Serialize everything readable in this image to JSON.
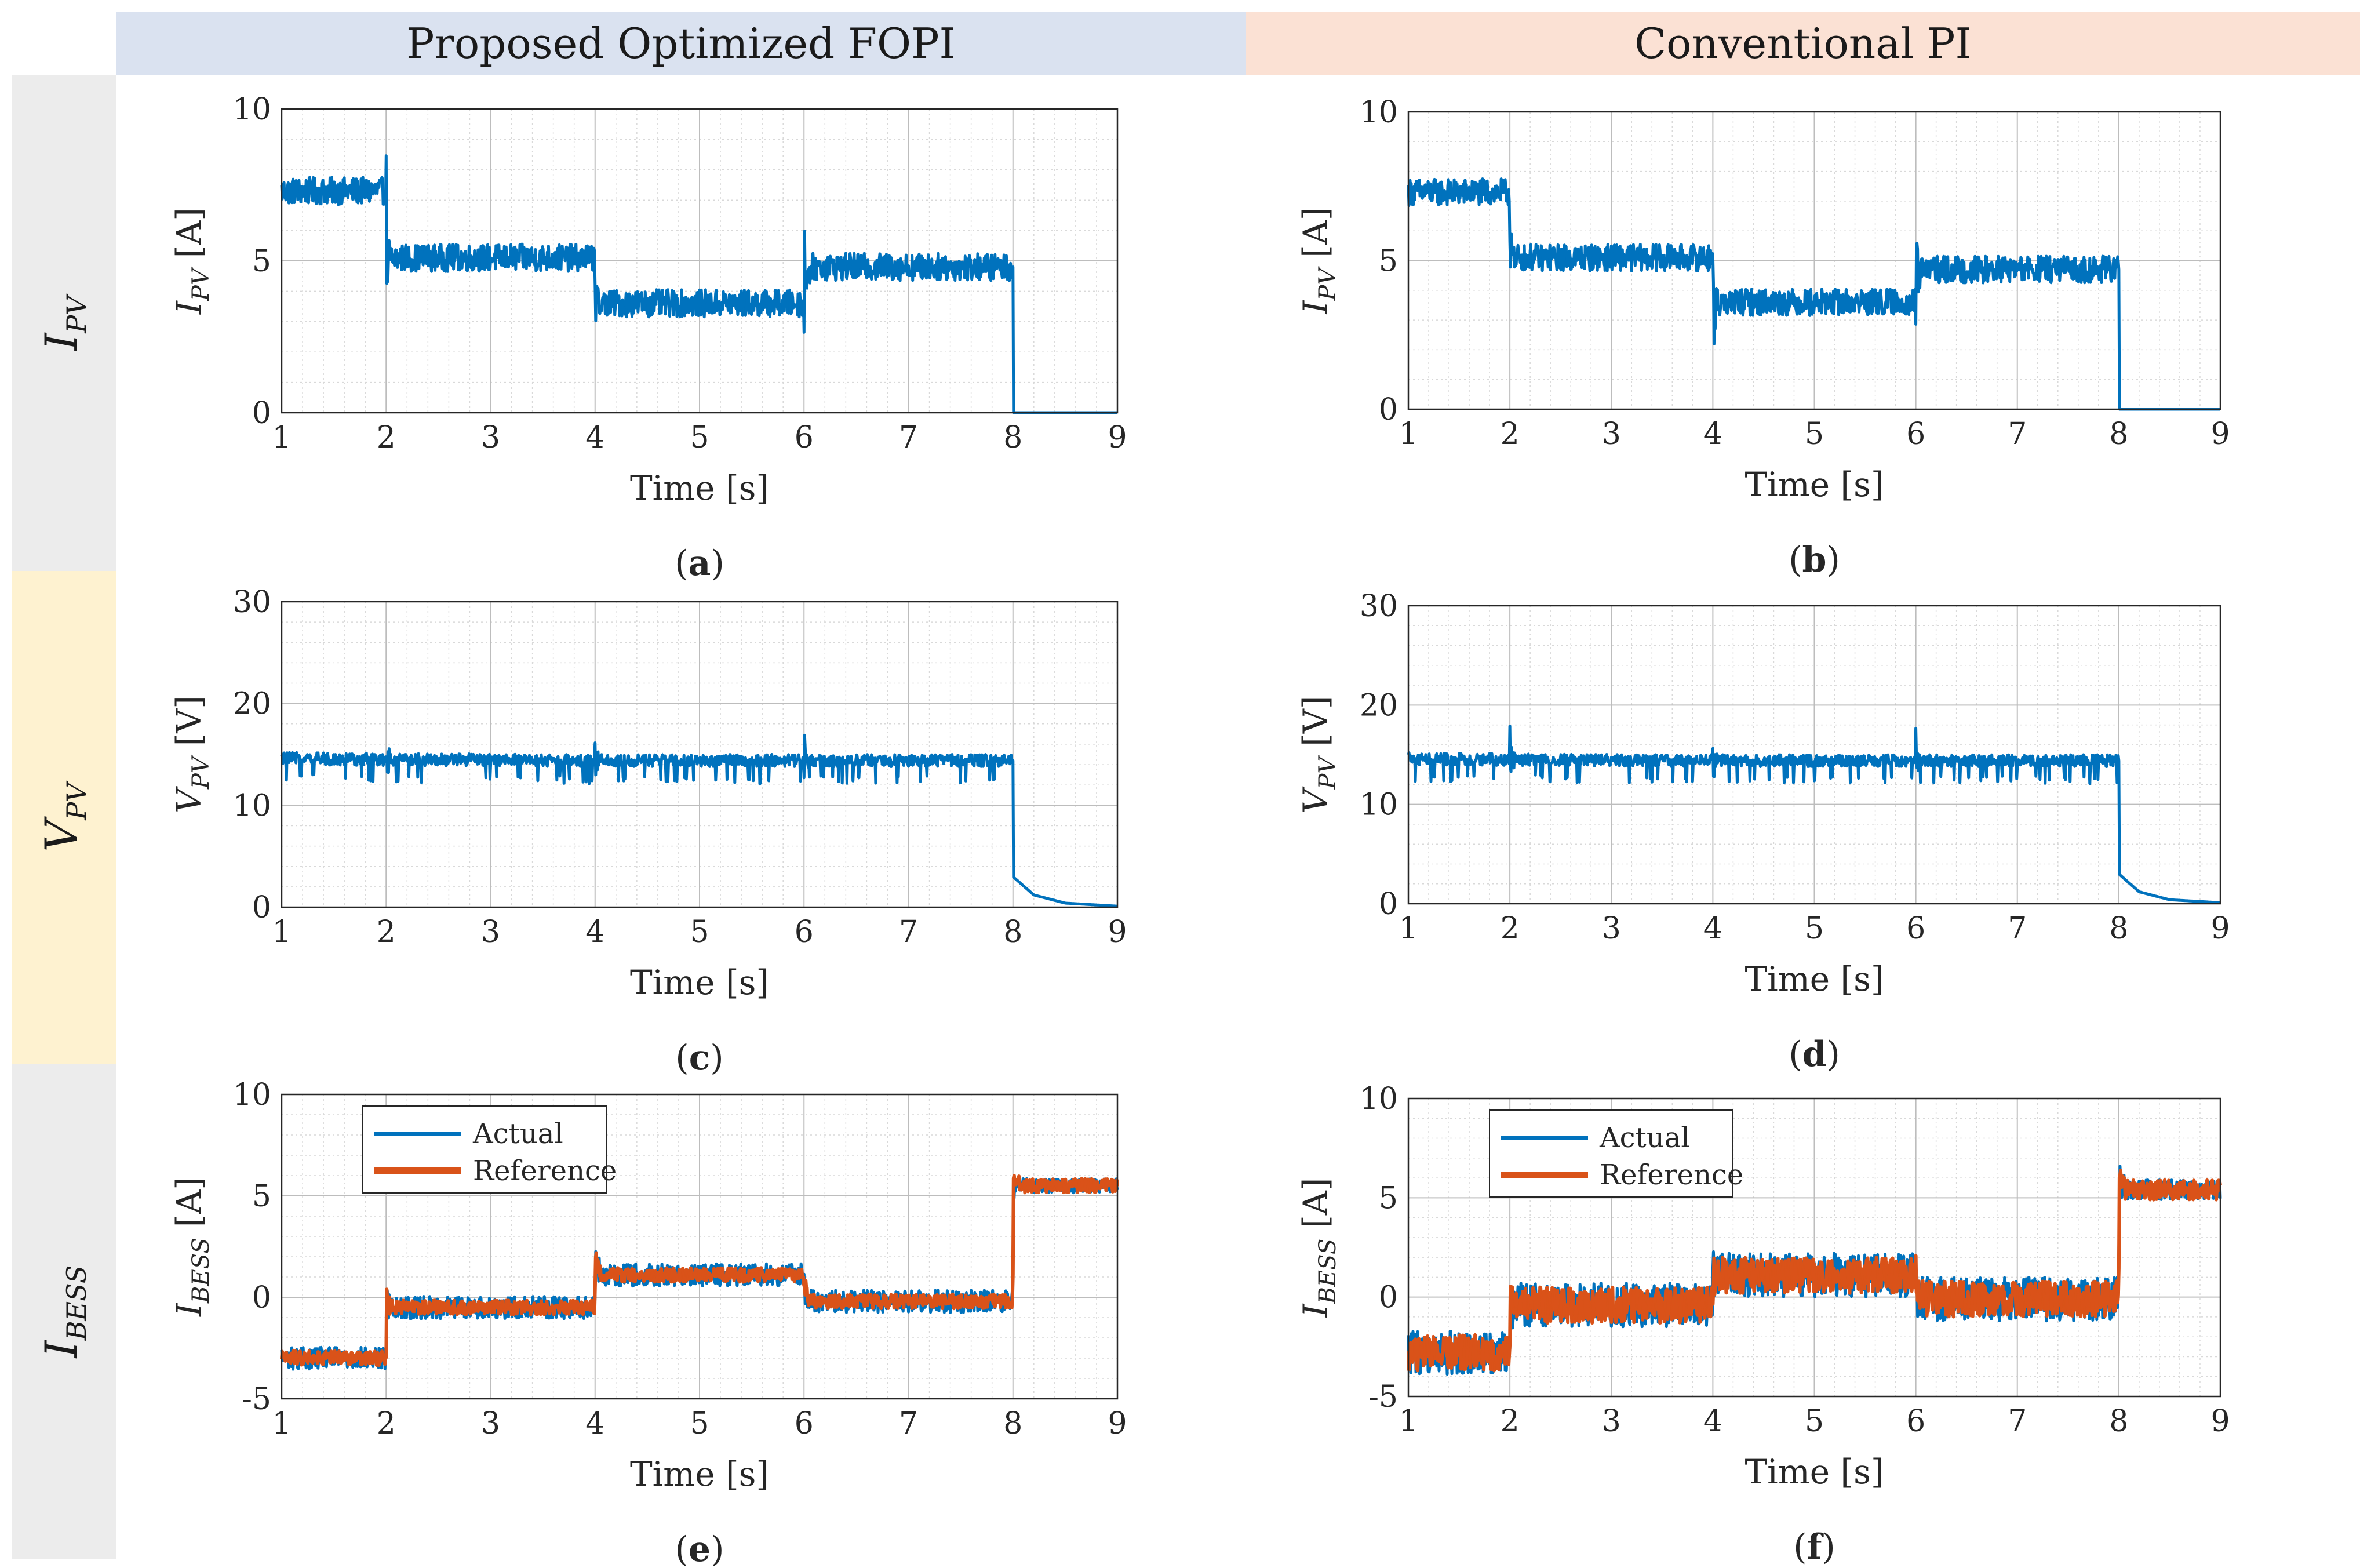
{
  "columns": [
    {
      "title": "Proposed Optimized FOPI",
      "color": "#dae2f0"
    },
    {
      "title": "Conventional PI",
      "color": "#fbe1d4"
    }
  ],
  "rows": [
    {
      "label": "I",
      "sub": "PV",
      "color": "#ececec"
    },
    {
      "label": "V",
      "sub": "PV",
      "color": "#fef2d0"
    },
    {
      "label": "I",
      "sub": "BESS",
      "color": "#ececec"
    }
  ],
  "colors": {
    "actual": "#0072bd",
    "reference": "#d95319"
  },
  "chart_data": [
    {
      "id": "a",
      "type": "line",
      "caption": "a",
      "xlabel": "Time [s]",
      "ylabel_main": "I",
      "ylabel_sub": "PV",
      "ylabel_unit": "[A]",
      "xlim": [
        1,
        9
      ],
      "ylim": [
        0,
        10
      ],
      "xticks": [
        1,
        2,
        3,
        4,
        5,
        6,
        7,
        8,
        9
      ],
      "yticks": [
        0,
        5,
        10
      ],
      "grid": true,
      "minor_grid": true,
      "series": [
        {
          "x": [
            1.0,
            2.0,
            2.0,
            4.0,
            4.0,
            6.0,
            6.0,
            8.0,
            8.0,
            9.0
          ],
          "y": [
            7.3,
            7.3,
            5.1,
            5.1,
            3.6,
            3.6,
            4.8,
            4.8,
            0.0,
            0.0
          ]
        }
      ]
    },
    {
      "id": "b",
      "type": "line",
      "caption": "b",
      "xlabel": "Time [s]",
      "ylabel_main": "I",
      "ylabel_sub": "PV",
      "ylabel_unit": "[A]",
      "xlim": [
        1,
        9
      ],
      "ylim": [
        0,
        10
      ],
      "xticks": [
        1,
        2,
        3,
        4,
        5,
        6,
        7,
        8,
        9
      ],
      "yticks": [
        0,
        5,
        10
      ],
      "grid": true,
      "minor_grid": true,
      "series": [
        {
          "x": [
            1.0,
            2.0,
            2.0,
            4.0,
            4.0,
            6.0,
            6.0,
            8.0,
            8.0,
            9.0
          ],
          "y": [
            7.3,
            7.3,
            5.1,
            5.1,
            3.6,
            3.6,
            4.7,
            4.7,
            0.0,
            0.0
          ]
        }
      ]
    },
    {
      "id": "c",
      "type": "line",
      "caption": "c",
      "xlabel": "Time [s]",
      "ylabel_main": "V",
      "ylabel_sub": "PV",
      "ylabel_unit": "[V]",
      "xlim": [
        1,
        9
      ],
      "ylim": [
        0,
        30
      ],
      "xticks": [
        1,
        2,
        3,
        4,
        5,
        6,
        7,
        8,
        9
      ],
      "yticks": [
        0,
        10,
        20,
        30
      ],
      "grid": true,
      "minor_grid": true,
      "series": [
        {
          "x": [
            1.0,
            2.0,
            4.0,
            6.0,
            8.0,
            8.0,
            8.2,
            8.5,
            9.0
          ],
          "y": [
            14.6,
            14.5,
            14.4,
            14.4,
            14.4,
            3.0,
            1.2,
            0.4,
            0.1
          ]
        }
      ]
    },
    {
      "id": "d",
      "type": "line",
      "caption": "d",
      "xlabel": "Time [s]",
      "ylabel_main": "V",
      "ylabel_sub": "PV",
      "ylabel_unit": "[V]",
      "xlim": [
        1,
        9
      ],
      "ylim": [
        0,
        30
      ],
      "xticks": [
        1,
        2,
        3,
        4,
        5,
        6,
        7,
        8,
        9
      ],
      "yticks": [
        0,
        10,
        20,
        30
      ],
      "grid": true,
      "minor_grid": true,
      "series": [
        {
          "x": [
            1.0,
            2.0,
            4.0,
            6.0,
            8.0,
            8.0,
            8.2,
            8.5,
            9.0
          ],
          "y": [
            14.6,
            14.5,
            14.4,
            14.4,
            14.4,
            3.0,
            1.2,
            0.4,
            0.1
          ]
        }
      ]
    },
    {
      "id": "e",
      "type": "line",
      "caption": "e",
      "xlabel": "Time [s]",
      "ylabel_main": "I",
      "ylabel_sub": "BESS",
      "ylabel_unit": "[A]",
      "xlim": [
        1,
        9
      ],
      "ylim": [
        -5,
        10
      ],
      "xticks": [
        1,
        2,
        3,
        4,
        5,
        6,
        7,
        8,
        9
      ],
      "yticks": [
        -5,
        0,
        5,
        10
      ],
      "grid": true,
      "minor_grid": true,
      "legend_position": "top-left",
      "series": [
        {
          "name": "Actual",
          "x": [
            1.0,
            2.0,
            2.0,
            4.0,
            4.0,
            6.0,
            6.0,
            8.0,
            8.0,
            9.0
          ],
          "y": [
            -3.0,
            -3.0,
            -0.5,
            -0.5,
            1.1,
            1.1,
            -0.2,
            -0.2,
            5.5,
            5.5
          ]
        },
        {
          "name": "Reference",
          "x": [
            1.0,
            2.0,
            2.0,
            4.0,
            4.0,
            6.0,
            6.0,
            8.0,
            8.0,
            9.0
          ],
          "y": [
            -3.0,
            -3.0,
            -0.5,
            -0.5,
            1.1,
            1.1,
            -0.2,
            -0.2,
            5.5,
            5.5
          ]
        }
      ]
    },
    {
      "id": "f",
      "type": "line",
      "caption": "f",
      "xlabel": "Time [s]",
      "ylabel_main": "I",
      "ylabel_sub": "BESS",
      "ylabel_unit": "[A]",
      "xlim": [
        1,
        9
      ],
      "ylim": [
        -5,
        10
      ],
      "xticks": [
        1,
        2,
        3,
        4,
        5,
        6,
        7,
        8,
        9
      ],
      "yticks": [
        -5,
        0,
        5,
        10
      ],
      "grid": true,
      "minor_grid": true,
      "legend_position": "top-left",
      "series": [
        {
          "name": "Actual",
          "x": [
            1.0,
            2.0,
            2.0,
            4.0,
            4.0,
            6.0,
            6.0,
            8.0,
            8.0,
            9.0
          ],
          "y": [
            -2.8,
            -2.8,
            -0.4,
            -0.4,
            1.1,
            1.1,
            -0.1,
            -0.1,
            5.4,
            5.4
          ]
        },
        {
          "name": "Reference",
          "x": [
            1.0,
            2.0,
            2.0,
            4.0,
            4.0,
            6.0,
            6.0,
            8.0,
            8.0,
            9.0
          ],
          "y": [
            -2.8,
            -2.8,
            -0.4,
            -0.4,
            1.1,
            1.1,
            -0.1,
            -0.1,
            5.4,
            5.4
          ]
        }
      ]
    }
  ]
}
